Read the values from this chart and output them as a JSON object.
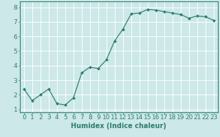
{
  "x": [
    0,
    1,
    2,
    3,
    4,
    5,
    6,
    7,
    8,
    9,
    10,
    11,
    12,
    13,
    14,
    15,
    16,
    17,
    18,
    19,
    20,
    21,
    22,
    23
  ],
  "y": [
    2.4,
    1.6,
    2.0,
    2.4,
    1.4,
    1.3,
    1.8,
    3.5,
    3.9,
    3.8,
    4.4,
    5.7,
    6.5,
    7.55,
    7.6,
    7.85,
    7.8,
    7.7,
    7.6,
    7.5,
    7.25,
    7.4,
    7.35,
    7.1
  ],
  "xlabel": "Humidex (Indice chaleur)",
  "ylim": [
    0.8,
    8.4
  ],
  "xlim": [
    -0.5,
    23.5
  ],
  "yticks": [
    1,
    2,
    3,
    4,
    5,
    6,
    7,
    8
  ],
  "xticks": [
    0,
    1,
    2,
    3,
    4,
    5,
    6,
    7,
    8,
    9,
    10,
    11,
    12,
    13,
    14,
    15,
    16,
    17,
    18,
    19,
    20,
    21,
    22,
    23
  ],
  "line_color": "#2e7d6e",
  "marker_color": "#2e7d6e",
  "bg_color": "#cce8e8",
  "grid_color": "#ffffff",
  "axes_color": "#2e7d6e",
  "xlabel_fontsize": 7,
  "tick_fontsize": 6.5
}
